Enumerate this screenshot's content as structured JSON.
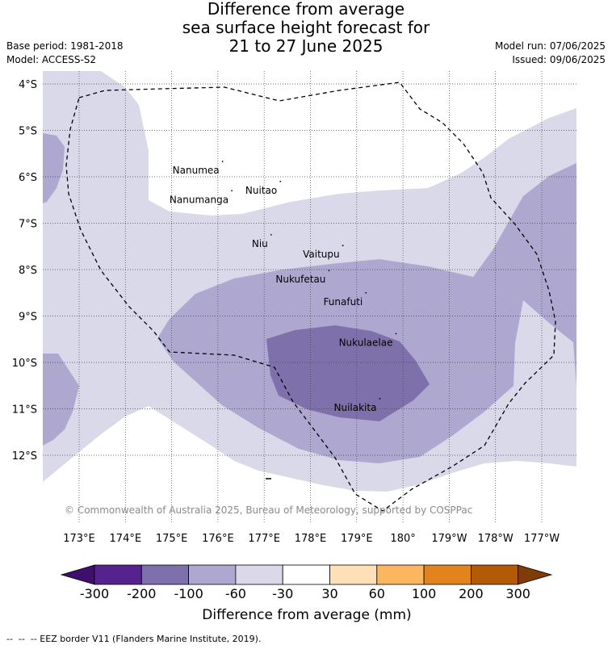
{
  "title": {
    "line1": "Difference from average",
    "line2": "sea surface height forecast for",
    "line3": "21 to 27 June 2025"
  },
  "meta": {
    "base_period": "Base period: 1981-2018",
    "model": "Model: ACCESS-S2",
    "model_run": "Model run: 07/06/2025",
    "issued": "Issued: 09/06/2025"
  },
  "map": {
    "lat_labels": [
      "4°S",
      "5°S",
      "6°S",
      "7°S",
      "8°S",
      "9°S",
      "10°S",
      "11°S",
      "12°S"
    ],
    "lon_labels": [
      "173°E",
      "174°E",
      "175°E",
      "176°E",
      "177°E",
      "178°E",
      "179°E",
      "180°",
      "179°W",
      "178°W",
      "177°W"
    ],
    "places": [
      {
        "name": "Nanumea",
        "lon": 176.1,
        "lat": -5.67
      },
      {
        "name": "Nuitao",
        "lon": 177.35,
        "lat": -6.1
      },
      {
        "name": "Nanumanga",
        "lon": 176.3,
        "lat": -6.3
      },
      {
        "name": "Niu",
        "lon": 177.15,
        "lat": -7.25
      },
      {
        "name": "Vaitupu",
        "lon": 178.7,
        "lat": -7.48
      },
      {
        "name": "Nukufetau",
        "lon": 178.4,
        "lat": -8.02
      },
      {
        "name": "Funafuti",
        "lon": 179.2,
        "lat": -8.5
      },
      {
        "name": "Nukulaelae",
        "lon": 179.85,
        "lat": -9.38
      },
      {
        "name": "Nuilakita",
        "lon": 179.5,
        "lat": -10.78
      }
    ],
    "copyright": "© Commonwealth of Australia 2025, Bureau of Meteorology, supported by COSPPac",
    "colors": {
      "c_-300": "#3f0f6e",
      "c_-200": "#56238e",
      "c_-100": "#7e71ab",
      "c_-60": "#aea8d0",
      "c_-30": "#d9d9ea",
      "c_30": "#ffffff",
      "c_60": "#fee0b7",
      "c_100": "#fdb660",
      "c_200": "#e2831e",
      "c_300": "#b35a07",
      "c_over": "#7f3b08"
    }
  },
  "colorbar": {
    "ticks": [
      "-300",
      "-200",
      "-100",
      "-60",
      "-30",
      "30",
      "60",
      "100",
      "200",
      "300"
    ],
    "title": "Difference from average (mm)"
  },
  "footnote": "--  --  -- EEZ border V11 (Flanders Marine Institute, 2019)."
}
